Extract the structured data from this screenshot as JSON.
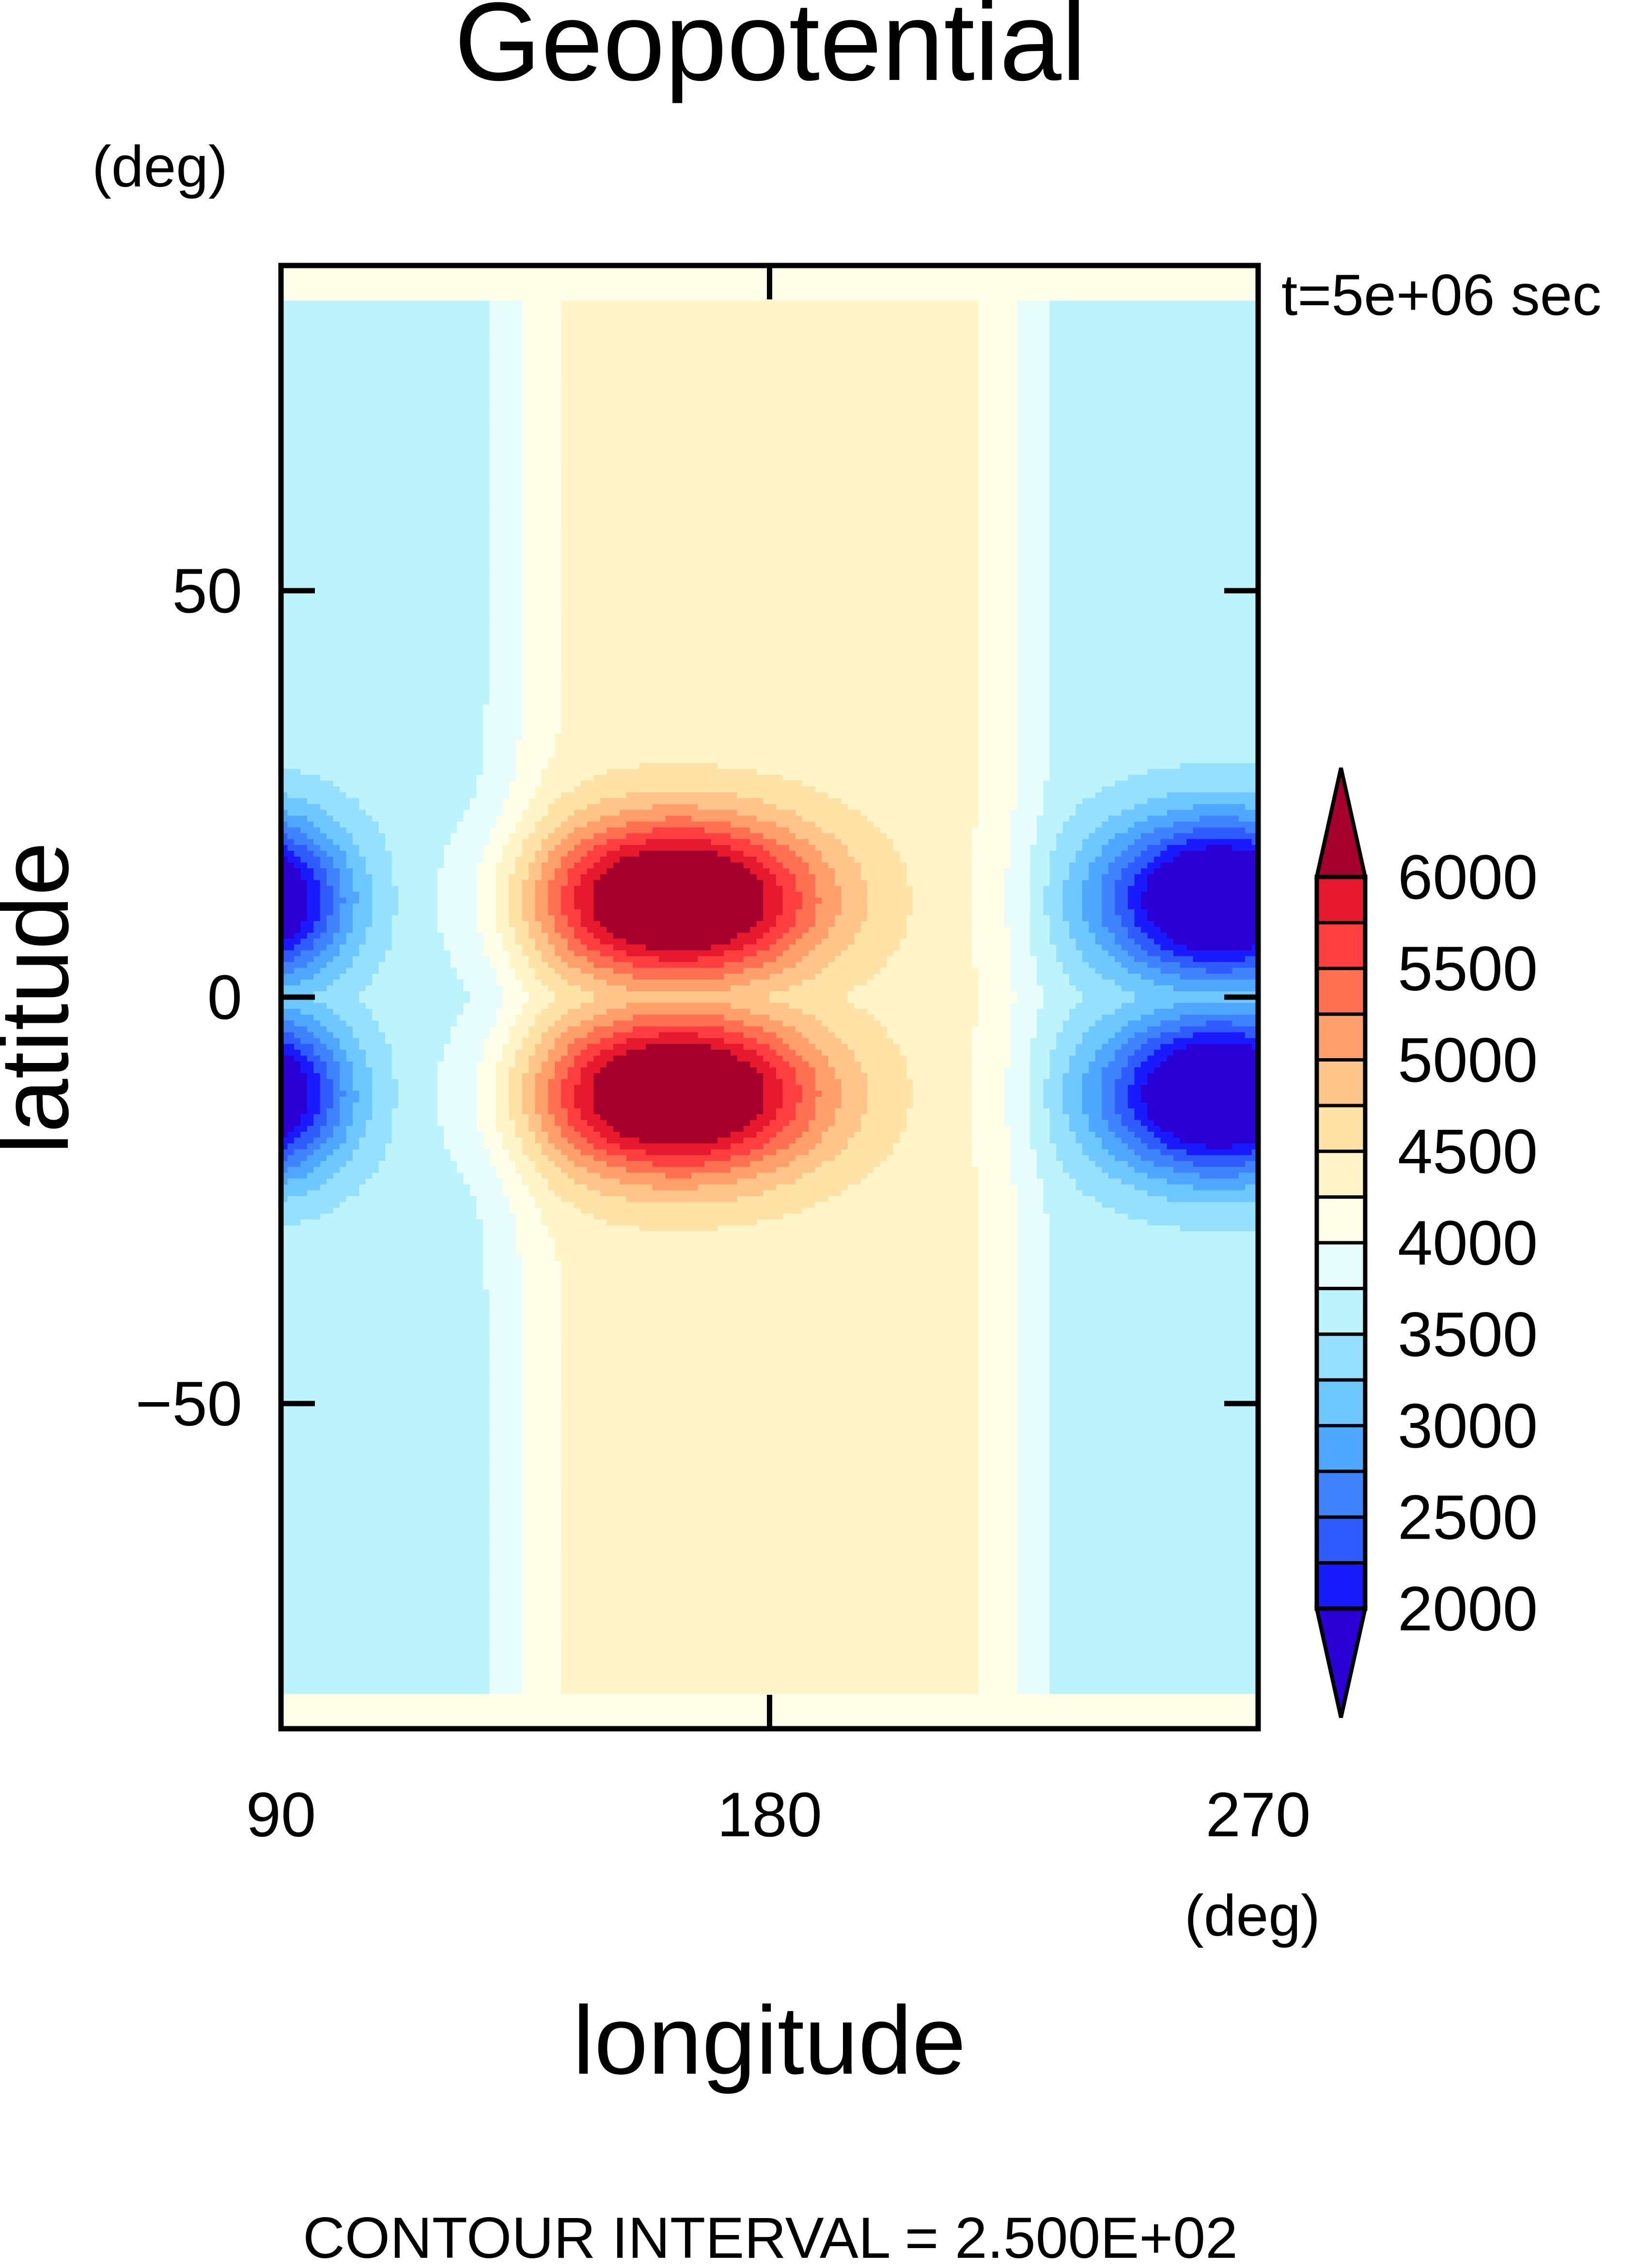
{
  "chart_data": {
    "type": "heatmap",
    "title": "Geopotential",
    "xlabel": "longitude",
    "ylabel": "latitude",
    "x_unit": "(deg)",
    "y_unit": "(deg)",
    "time_label": "t=5e+06 sec",
    "footer": "CONTOUR INTERVAL = 2.500E+02",
    "xlim": [
      90,
      270
    ],
    "ylim": [
      -90,
      90
    ],
    "x_ticks": [
      90,
      180,
      270
    ],
    "y_ticks": [
      50,
      0,
      -50
    ],
    "y_tick_labels": [
      "50",
      "0",
      "−50"
    ],
    "contour_interval": 250,
    "colorbar": {
      "levels": [
        2000,
        2250,
        2500,
        2750,
        3000,
        3250,
        3500,
        3750,
        4000,
        4250,
        4500,
        4750,
        5000,
        5250,
        5500,
        5750,
        6000
      ],
      "tick_labels": [
        "6000",
        "5500",
        "5000",
        "4500",
        "4000",
        "3500",
        "3000",
        "2500",
        "2000"
      ],
      "colors": [
        "#2b00d4",
        "#1a1aff",
        "#2e5cff",
        "#3f83ff",
        "#4fa6ff",
        "#6ec8ff",
        "#96e0ff",
        "#bdf3fb",
        "#e6fdfb",
        "#fffee8",
        "#fff5c8",
        "#ffe2a6",
        "#ffc48a",
        "#ff9f6b",
        "#ff6f52",
        "#ff3f3f",
        "#e6192f",
        "#a5002b"
      ],
      "extend": "both"
    },
    "field": {
      "description_of_pattern": "",
      "base_value": 4000,
      "features": [
        {
          "lon": 162,
          "lat": 13,
          "value": 6300,
          "kind": "high"
        },
        {
          "lon": 162,
          "lat": -13,
          "value": 6300,
          "kind": "high"
        },
        {
          "lon": 262,
          "lat": 11,
          "value": 1700,
          "kind": "low"
        },
        {
          "lon": 262,
          "lat": -11,
          "value": 1700,
          "kind": "low"
        },
        {
          "lon": 90,
          "lat": 12,
          "value": 1900,
          "kind": "low"
        },
        {
          "lon": 90,
          "lat": -12,
          "value": 1900,
          "kind": "low"
        }
      ]
    }
  }
}
